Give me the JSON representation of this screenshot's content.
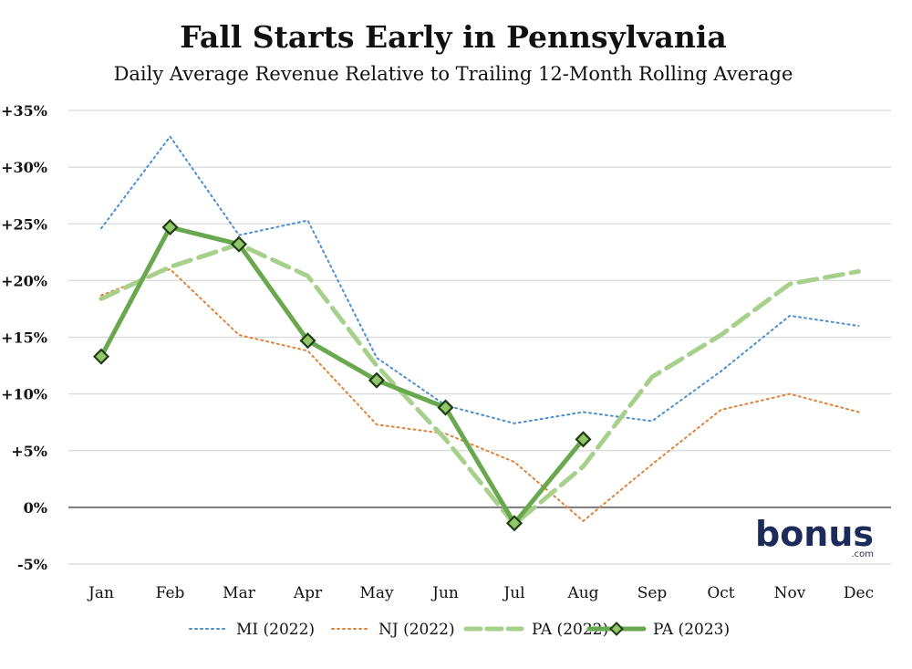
{
  "chart_data": {
    "type": "line",
    "title": "Fall Starts Early in Pennsylvania",
    "subtitle": "Daily Average Revenue Relative to Trailing 12-Month Rolling Average",
    "xlabel": "",
    "ylabel": "",
    "categories": [
      "Jan",
      "Feb",
      "Mar",
      "Apr",
      "May",
      "Jun",
      "Jul",
      "Aug",
      "Sep",
      "Oct",
      "Nov",
      "Dec"
    ],
    "ylim": [
      -5,
      35
    ],
    "yticks": [
      -5,
      0,
      5,
      10,
      15,
      20,
      25,
      30,
      35
    ],
    "ytick_labels": [
      "-5%",
      "0%",
      "+5%",
      "+10%",
      "+15%",
      "+20%",
      "+25%",
      "+30%",
      "+35%"
    ],
    "grid": true,
    "legend_position": "bottom",
    "series": [
      {
        "name": "MI (2022)",
        "color": "#4a8fcf",
        "style": "dotted",
        "values": [
          24.6,
          32.7,
          24.0,
          25.3,
          13.2,
          9.0,
          7.4,
          8.4,
          7.6,
          12.0,
          16.9,
          16.0
        ]
      },
      {
        "name": "NJ (2022)",
        "color": "#e0823a",
        "style": "dotted",
        "values": [
          18.7,
          21.0,
          15.2,
          13.8,
          7.3,
          6.5,
          4.0,
          -1.2,
          3.8,
          8.6,
          10.0,
          8.4
        ]
      },
      {
        "name": "PA (2022)",
        "color": "#a8d08d",
        "style": "dashed",
        "values": [
          18.4,
          21.2,
          23.2,
          20.4,
          12.5,
          6.0,
          -1.5,
          3.6,
          11.5,
          15.2,
          19.7,
          20.8
        ]
      },
      {
        "name": "PA (2023)",
        "color": "#6aa84f",
        "style": "solid-markers",
        "values": [
          13.3,
          24.7,
          23.2,
          14.7,
          11.2,
          8.8,
          -1.4,
          6.0,
          null,
          null,
          null,
          null
        ]
      }
    ]
  },
  "logo": {
    "text": "bonus",
    "sub": ".com"
  }
}
